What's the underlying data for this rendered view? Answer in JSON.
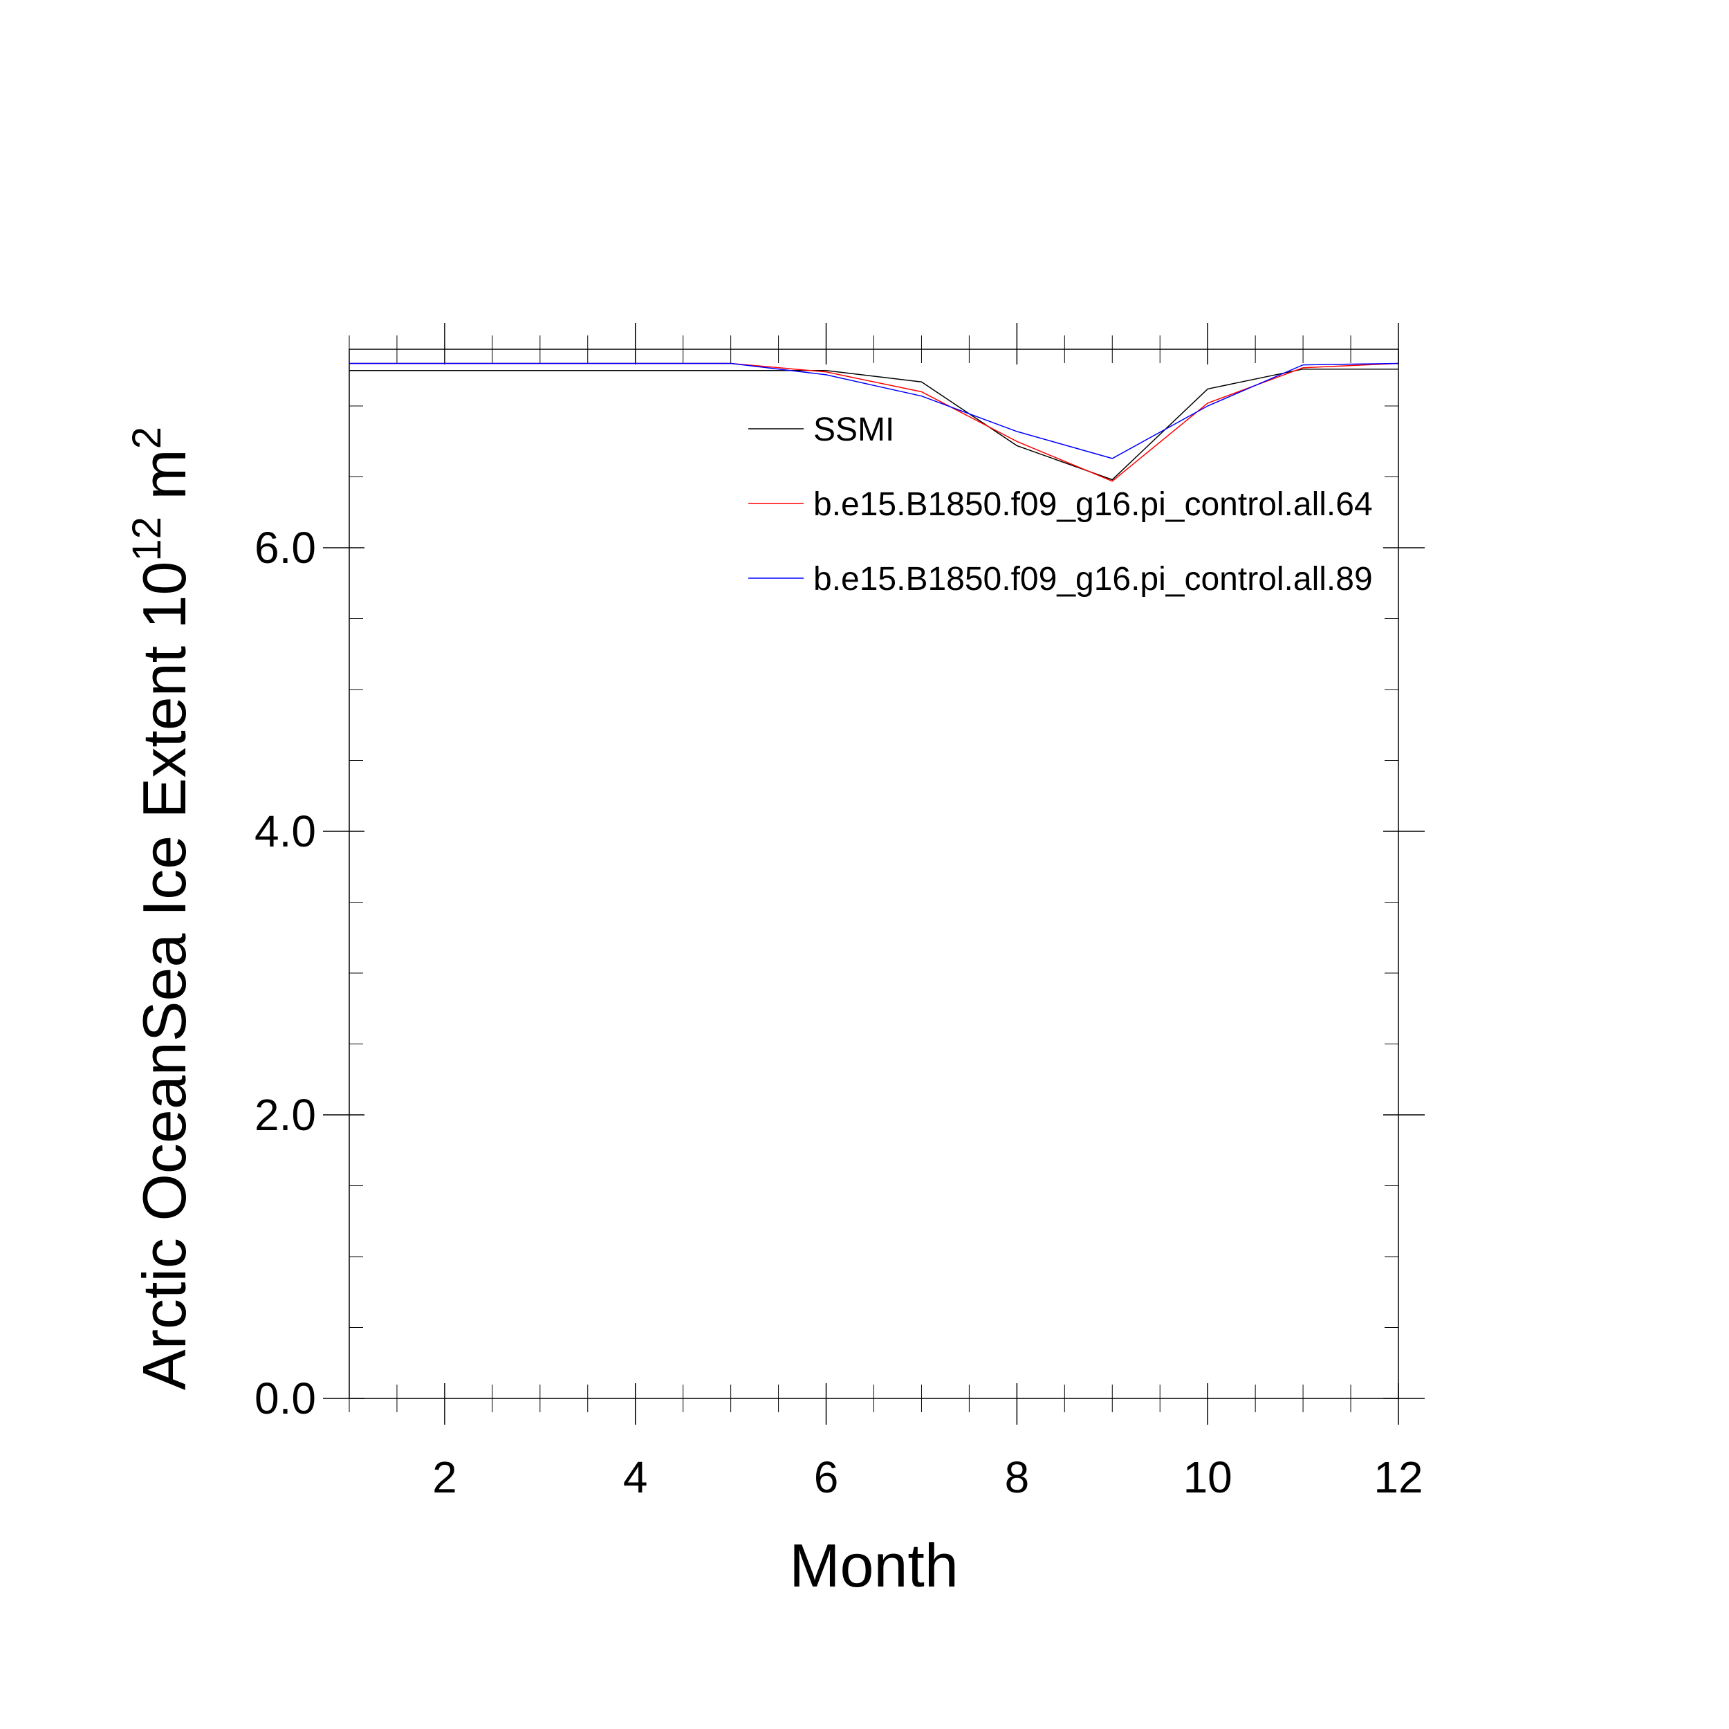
{
  "chart_data": {
    "type": "line",
    "xlabel": "Month",
    "ylabel": {
      "prefix": "Arctic OceanSea Ice Extent 10",
      "sup1": "12",
      "mid": " m",
      "sup2": "2"
    },
    "xlim": [
      1,
      12
    ],
    "ylim": [
      0.0,
      7.4
    ],
    "xticks": [
      2,
      4,
      6,
      8,
      10,
      12
    ],
    "xtick_labels": [
      "2",
      "4",
      "6",
      "8",
      "10",
      "12"
    ],
    "yticks": [
      0.0,
      2.0,
      4.0,
      6.0
    ],
    "ytick_labels": [
      "0.0",
      "2.0",
      "4.0",
      "6.0"
    ],
    "grid": false,
    "legend_position": "top-right",
    "x": [
      1,
      2,
      3,
      4,
      5,
      6,
      7,
      8,
      9,
      10,
      11,
      12
    ],
    "series": [
      {
        "name": "SSMI",
        "color": "#000000",
        "values": [
          7.25,
          7.25,
          7.25,
          7.25,
          7.25,
          7.25,
          7.17,
          6.72,
          6.48,
          7.12,
          7.26,
          7.26
        ]
      },
      {
        "name": "b.e15.B1850.f09_g16.pi_control.all.64",
        "color": "#ff0000",
        "values": [
          7.3,
          7.3,
          7.3,
          7.3,
          7.3,
          7.24,
          7.1,
          6.75,
          6.47,
          7.02,
          7.27,
          7.3
        ]
      },
      {
        "name": "b.e15.B1850.f09_g16.pi_control.all.89",
        "color": "#0000ff",
        "values": [
          7.3,
          7.3,
          7.3,
          7.3,
          7.3,
          7.22,
          7.07,
          6.82,
          6.63,
          7.0,
          7.29,
          7.3
        ]
      }
    ]
  }
}
